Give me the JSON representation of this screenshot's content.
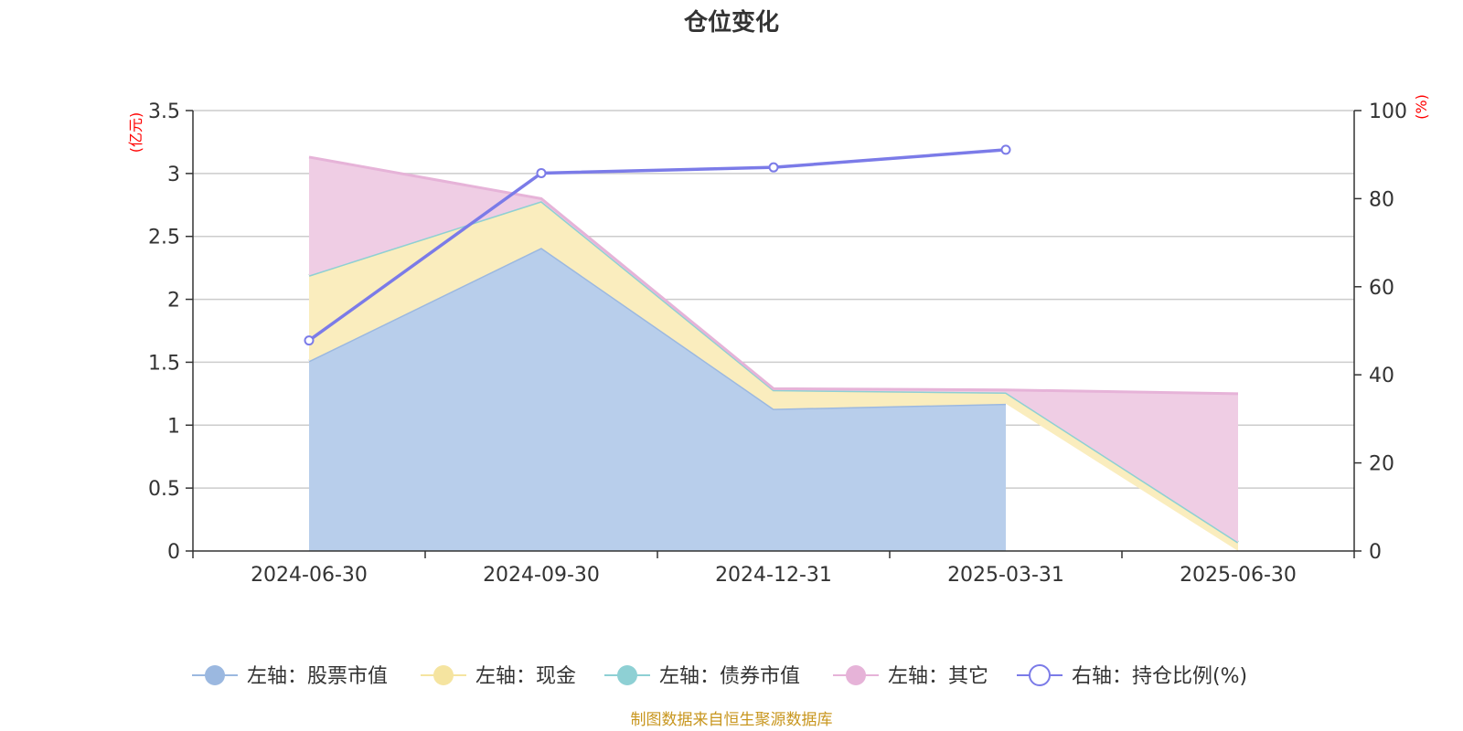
{
  "chart_data": {
    "type": "area",
    "title": "仓位变化",
    "categories": [
      "2024-06-30",
      "2024-09-30",
      "2024-12-31",
      "2025-03-31",
      "2025-06-30"
    ],
    "y_left": {
      "unit": "(亿元)",
      "min": 0,
      "max": 3.5,
      "ticks": [
        "0",
        "0.5",
        "1",
        "1.5",
        "2",
        "2.5",
        "3",
        "3.5"
      ]
    },
    "y_right": {
      "unit": "(%)",
      "min": 0,
      "max": 100,
      "ticks": [
        "0",
        "20",
        "40",
        "60",
        "80",
        "100"
      ]
    },
    "grid": true,
    "legend_position": "bottom",
    "stacked_series": [
      {
        "name": "左轴：股票市值",
        "color": "#9bb8e0",
        "fill": "#b8ceeb",
        "values": [
          1.51,
          2.41,
          1.13,
          1.17,
          null
        ]
      },
      {
        "name": "左轴：现金",
        "color": "#f5e4a0",
        "fill": "#faedbe",
        "values": [
          0.68,
          0.37,
          0.15,
          0.09,
          0.07
        ]
      },
      {
        "name": "左轴：债券市值",
        "color": "#8ed0d4",
        "fill": "#b5e2e4",
        "values": [
          0,
          0,
          0,
          0,
          0
        ]
      },
      {
        "name": "左轴：其它",
        "color": "#e6b3d8",
        "fill": "#efcde4",
        "values": [
          0.94,
          0.02,
          0.01,
          0.02,
          1.18
        ]
      }
    ],
    "line_series": {
      "name": "右轴：持仓比例(%)",
      "color": "#7b7be8",
      "axis": "right",
      "values": [
        47.8,
        85.8,
        87.1,
        91.1,
        null
      ]
    }
  },
  "footer": "制图数据来自恒生聚源数据库"
}
